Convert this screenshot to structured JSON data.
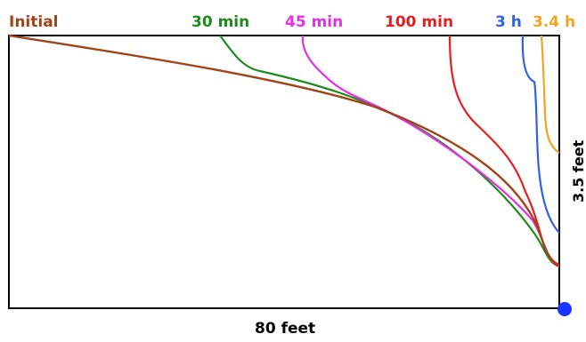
{
  "diagram": {
    "width_label": "80 feet",
    "height_label": "3.5 feet",
    "curves": [
      {
        "id": "initial",
        "label": "Initial",
        "color": "#a0451a"
      },
      {
        "id": "t30",
        "label": "30 min",
        "color": "#1e8a1e"
      },
      {
        "id": "t45",
        "label": "45 min",
        "color": "#e62ee6"
      },
      {
        "id": "t100",
        "label": "100 min",
        "color": "#e81e1e"
      },
      {
        "id": "t3h",
        "label": "3 h",
        "color": "#2e62e6"
      },
      {
        "id": "t34h",
        "label": "3.4 h",
        "color": "#f2a422"
      }
    ],
    "outlet_color": "#1a34ff",
    "frame_color": "#000000"
  }
}
